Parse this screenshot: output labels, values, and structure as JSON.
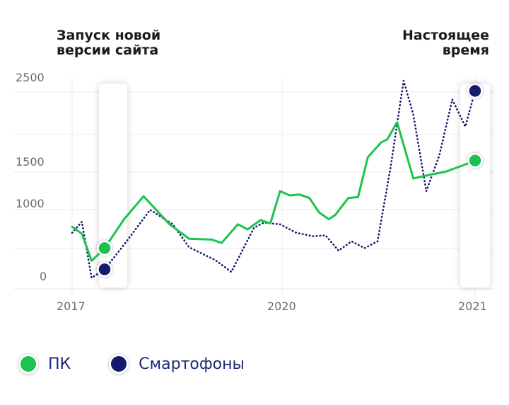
{
  "annotations": {
    "left": [
      "Запуск новой",
      "версии сайта"
    ],
    "right": [
      "Настоящее",
      "время"
    ]
  },
  "legend": [
    {
      "label": "ПК",
      "color": "#1ec24f"
    },
    {
      "label": "Смартофоны",
      "color": "#141a6b"
    }
  ],
  "chart_data": {
    "type": "line",
    "x_tick_labels": [
      "2017",
      "2020",
      "2021"
    ],
    "y_tick_labels": [
      "2500",
      "1500",
      "1000",
      "0"
    ],
    "ylim": [
      0,
      2500
    ],
    "grid": "x and y gridlines",
    "legend_position": "bottom",
    "series": [
      {
        "name": "ПК",
        "color": "#1ec24f",
        "style": "solid",
        "points": [
          [
            2017.0,
            730
          ],
          [
            2017.15,
            650
          ],
          [
            2017.3,
            330
          ],
          [
            2017.5,
            480
          ],
          [
            2017.8,
            820
          ],
          [
            2018.1,
            1090
          ],
          [
            2018.5,
            760
          ],
          [
            2018.8,
            590
          ],
          [
            2019.15,
            580
          ],
          [
            2019.3,
            540
          ],
          [
            2019.55,
            760
          ],
          [
            2019.7,
            700
          ],
          [
            2019.9,
            810
          ],
          [
            2020.05,
            770
          ],
          [
            2020.2,
            1150
          ],
          [
            2020.35,
            1100
          ],
          [
            2020.5,
            1110
          ],
          [
            2020.65,
            1070
          ],
          [
            2020.8,
            900
          ],
          [
            2020.95,
            820
          ],
          [
            2021.05,
            870
          ],
          [
            2021.25,
            1070
          ],
          [
            2021.4,
            1080
          ],
          [
            2021.55,
            1550
          ],
          [
            2021.75,
            1720
          ],
          [
            2021.85,
            1760
          ],
          [
            2022.0,
            1960
          ],
          [
            2022.25,
            1300
          ],
          [
            2022.55,
            1350
          ],
          [
            2022.75,
            1380
          ],
          [
            2023.0,
            1450
          ],
          [
            2023.2,
            1510
          ]
        ],
        "markers": [
          [
            2017.5,
            480
          ],
          [
            2023.2,
            1510
          ]
        ]
      },
      {
        "name": "Смартофоны",
        "color": "#141a6b",
        "style": "dotted",
        "points": [
          [
            2017.0,
            660
          ],
          [
            2017.15,
            790
          ],
          [
            2017.3,
            130
          ],
          [
            2017.5,
            230
          ],
          [
            2017.8,
            520
          ],
          [
            2018.2,
            930
          ],
          [
            2018.55,
            760
          ],
          [
            2018.8,
            490
          ],
          [
            2019.2,
            340
          ],
          [
            2019.45,
            200
          ],
          [
            2019.8,
            720
          ],
          [
            2019.95,
            780
          ],
          [
            2020.2,
            760
          ],
          [
            2020.45,
            660
          ],
          [
            2020.7,
            620
          ],
          [
            2020.9,
            630
          ],
          [
            2021.1,
            450
          ],
          [
            2021.3,
            560
          ],
          [
            2021.5,
            480
          ],
          [
            2021.7,
            560
          ],
          [
            2021.9,
            1430
          ],
          [
            2022.1,
            2450
          ],
          [
            2022.25,
            2050
          ],
          [
            2022.45,
            1150
          ],
          [
            2022.65,
            1570
          ],
          [
            2022.85,
            2230
          ],
          [
            2023.05,
            1910
          ],
          [
            2023.2,
            2330
          ]
        ],
        "markers": [
          [
            2017.5,
            230
          ],
          [
            2023.2,
            2330
          ]
        ]
      }
    ]
  }
}
